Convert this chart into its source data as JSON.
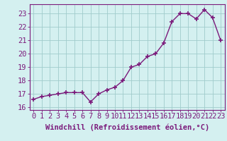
{
  "x": [
    0,
    1,
    2,
    3,
    4,
    5,
    6,
    7,
    8,
    9,
    10,
    11,
    12,
    13,
    14,
    15,
    16,
    17,
    18,
    19,
    20,
    21,
    22,
    23
  ],
  "y": [
    16.6,
    16.8,
    16.9,
    17.0,
    17.1,
    17.1,
    17.1,
    16.4,
    17.0,
    17.3,
    17.5,
    18.0,
    19.0,
    19.2,
    19.8,
    20.0,
    20.8,
    22.4,
    23.0,
    23.0,
    22.6,
    23.3,
    22.7,
    21.0
  ],
  "line_color": "#7b1a7b",
  "marker": "+",
  "marker_size": 4,
  "marker_lw": 1.2,
  "line_width": 1.0,
  "bg_color": "#d4f0f0",
  "grid_color": "#a0cccc",
  "xlabel": "Windchill (Refroidissement éolien,°C)",
  "ylim": [
    15.8,
    23.7
  ],
  "yticks": [
    16,
    17,
    18,
    19,
    20,
    21,
    22,
    23
  ],
  "xlim": [
    -0.5,
    23.5
  ],
  "xticks": [
    0,
    1,
    2,
    3,
    4,
    5,
    6,
    7,
    8,
    9,
    10,
    11,
    12,
    13,
    14,
    15,
    16,
    17,
    18,
    19,
    20,
    21,
    22,
    23
  ],
  "xtick_labels": [
    "0",
    "1",
    "2",
    "3",
    "4",
    "5",
    "6",
    "7",
    "8",
    "9",
    "10",
    "11",
    "12",
    "13",
    "14",
    "15",
    "16",
    "17",
    "18",
    "19",
    "20",
    "21",
    "22",
    "23"
  ],
  "spine_color": "#7b1a7b",
  "tick_color": "#7b1a7b",
  "label_fontsize": 7.5,
  "tick_fontsize": 7.5
}
